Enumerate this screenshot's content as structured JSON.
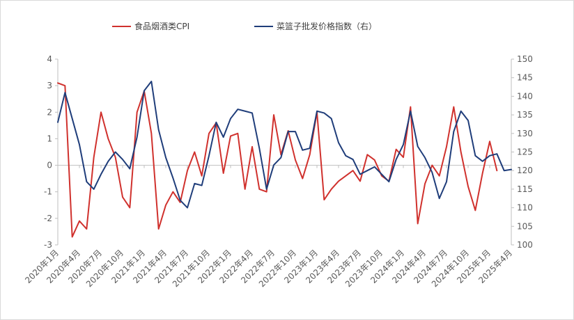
{
  "chart_data": {
    "type": "line",
    "legend_position": "top",
    "grid": false,
    "colors": {
      "series_left": "#d0312d",
      "series_right": "#1f3d7a",
      "axis": "#bfbfbf",
      "text": "#595959"
    },
    "y_left": {
      "min": -3,
      "max": 4,
      "ticks": [
        4,
        3,
        2,
        1,
        0,
        -1,
        -2,
        -3
      ]
    },
    "y_right": {
      "min": 100,
      "max": 150,
      "ticks": [
        150,
        145,
        140,
        135,
        130,
        125,
        120,
        115,
        110,
        105,
        100
      ]
    },
    "x_ticks": [
      "2020年1月",
      "2020年4月",
      "2020年7月",
      "2020年10月",
      "2021年1月",
      "2021年4月",
      "2021年7月",
      "2021年10月",
      "2022年1月",
      "2022年4月",
      "2022年7月",
      "2022年10月",
      "2023年1月",
      "2023年4月",
      "2023年7月",
      "2023年10月",
      "2024年1月",
      "2024年4月",
      "2024年7月",
      "2024年10月",
      "2025年1月",
      "2025年4月"
    ],
    "x_tick_month_index": [
      0,
      3,
      6,
      9,
      12,
      15,
      18,
      21,
      24,
      27,
      30,
      33,
      36,
      39,
      42,
      45,
      48,
      51,
      54,
      57,
      60,
      63
    ],
    "series": [
      {
        "name": "食品烟酒类CPI",
        "axis": "left",
        "start_month_index": 0,
        "values": [
          3.1,
          3.0,
          -2.7,
          -2.1,
          -2.4,
          0.3,
          2.0,
          1.0,
          0.3,
          -1.2,
          -1.6,
          2.0,
          2.8,
          1.2,
          -2.4,
          -1.5,
          -1.0,
          -1.4,
          -0.2,
          0.5,
          -0.4,
          1.2,
          1.6,
          -0.3,
          1.1,
          1.2,
          -0.9,
          0.7,
          -0.9,
          -1.0,
          1.9,
          0.4,
          1.3,
          0.2,
          -0.5,
          0.4,
          2.0,
          -1.3,
          -0.9,
          -0.6,
          -0.4,
          -0.2,
          -0.6,
          0.4,
          0.2,
          -0.4,
          -0.6,
          0.6,
          0.3,
          2.2,
          -2.2,
          -0.7,
          0.0,
          -0.4,
          0.7,
          2.2,
          0.5,
          -0.8,
          -1.7,
          -0.3,
          0.9,
          -0.2
        ]
      },
      {
        "name": "菜篮子批发价格指数（右）",
        "axis": "right",
        "start_month_index": 0,
        "values": [
          133.0,
          141.0,
          134.0,
          127.0,
          117.0,
          115.0,
          119.0,
          122.5,
          125.0,
          123.0,
          120.5,
          129.0,
          141.5,
          144.0,
          131.0,
          123.5,
          118.0,
          112.0,
          110.0,
          116.5,
          116.0,
          124.0,
          133.0,
          129.0,
          134.0,
          136.5,
          136.0,
          135.5,
          126.0,
          115.0,
          121.5,
          123.5,
          130.5,
          130.5,
          125.5,
          126.0,
          136.0,
          135.5,
          134.0,
          127.5,
          124.0,
          123.0,
          119.0,
          120.0,
          121.0,
          119.0,
          117.0,
          123.0,
          127.0,
          136.0,
          126.5,
          123.5,
          119.5,
          112.5,
          117.0,
          130.5,
          136.0,
          133.5,
          124.0,
          122.5,
          124.0,
          124.5,
          120.0,
          120.3
        ]
      }
    ]
  }
}
